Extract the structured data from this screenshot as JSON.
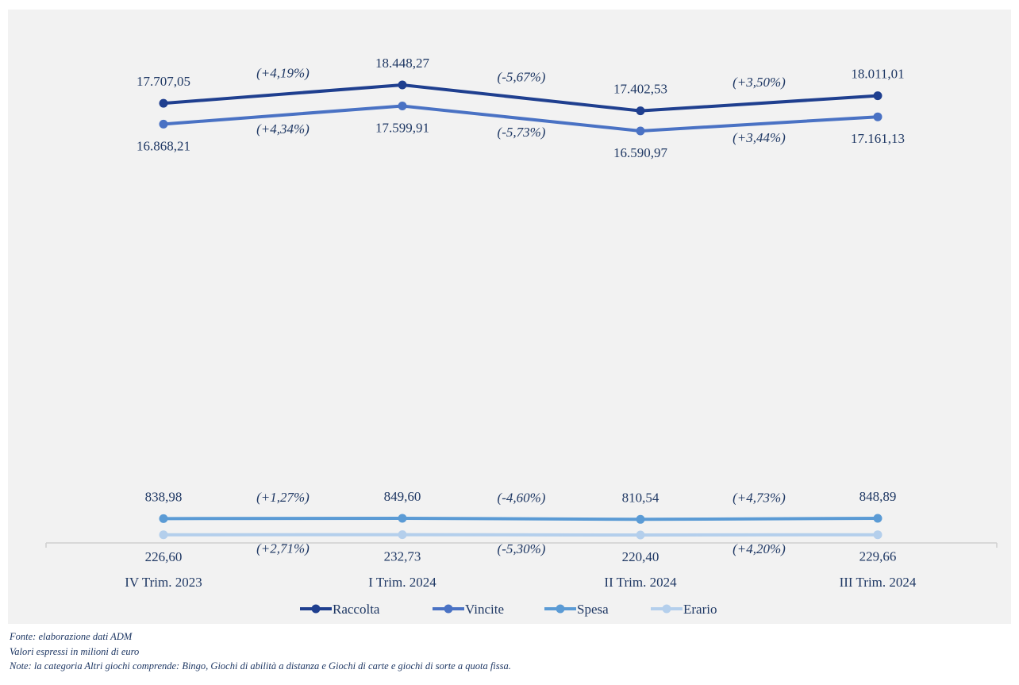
{
  "chart_data": {
    "type": "line",
    "categories": [
      "IV Trim. 2023",
      "I Trim. 2024",
      "II Trim. 2024",
      "III Trim. 2024"
    ],
    "series": [
      {
        "name": "Raccolta",
        "color": "#1f3f8f",
        "values": [
          17707.05,
          18448.27,
          17402.53,
          18011.01
        ],
        "value_labels": [
          "17.707,05",
          "18.448,27",
          "17.402,53",
          "18.011,01"
        ],
        "changes": [
          "(+4,19%)",
          "(-5,67%)",
          "(+3,50%)"
        ],
        "label_position": "above"
      },
      {
        "name": "Vincite",
        "color": "#4a72c4",
        "values": [
          16868.21,
          17599.91,
          16590.97,
          17161.13
        ],
        "value_labels": [
          "16.868,21",
          "17.599,91",
          "16.590,97",
          "17.161,13"
        ],
        "changes": [
          "(+4,34%)",
          "(-5,73%)",
          "(+3,44%)"
        ],
        "label_position": "below"
      },
      {
        "name": "Spesa",
        "color": "#5b9bd5",
        "values": [
          838.98,
          849.6,
          810.54,
          848.89
        ],
        "value_labels": [
          "838,98",
          "849,60",
          "810,54",
          "848,89"
        ],
        "changes": [
          "(+1,27%)",
          "(-4,60%)",
          "(+4,73%)"
        ],
        "label_position": "above"
      },
      {
        "name": "Erario",
        "color": "#b4cfec",
        "values": [
          226.6,
          232.73,
          220.4,
          229.66
        ],
        "value_labels": [
          "226,60",
          "232,73",
          "220,40",
          "229,66"
        ],
        "changes": [
          "(+2,71%)",
          "(-5,30%)",
          "(+4,20%)"
        ],
        "label_position": "below"
      }
    ],
    "grid": false,
    "legend_position": "bottom"
  },
  "notes": {
    "source": "Fonte: elaborazione dati ADM",
    "units": "Valori espressi in milioni di euro",
    "note": "Note: la categoria Altri giochi comprende: Bingo, Giochi di abilità a distanza e Giochi di carte e giochi di sorte a quota fissa."
  }
}
